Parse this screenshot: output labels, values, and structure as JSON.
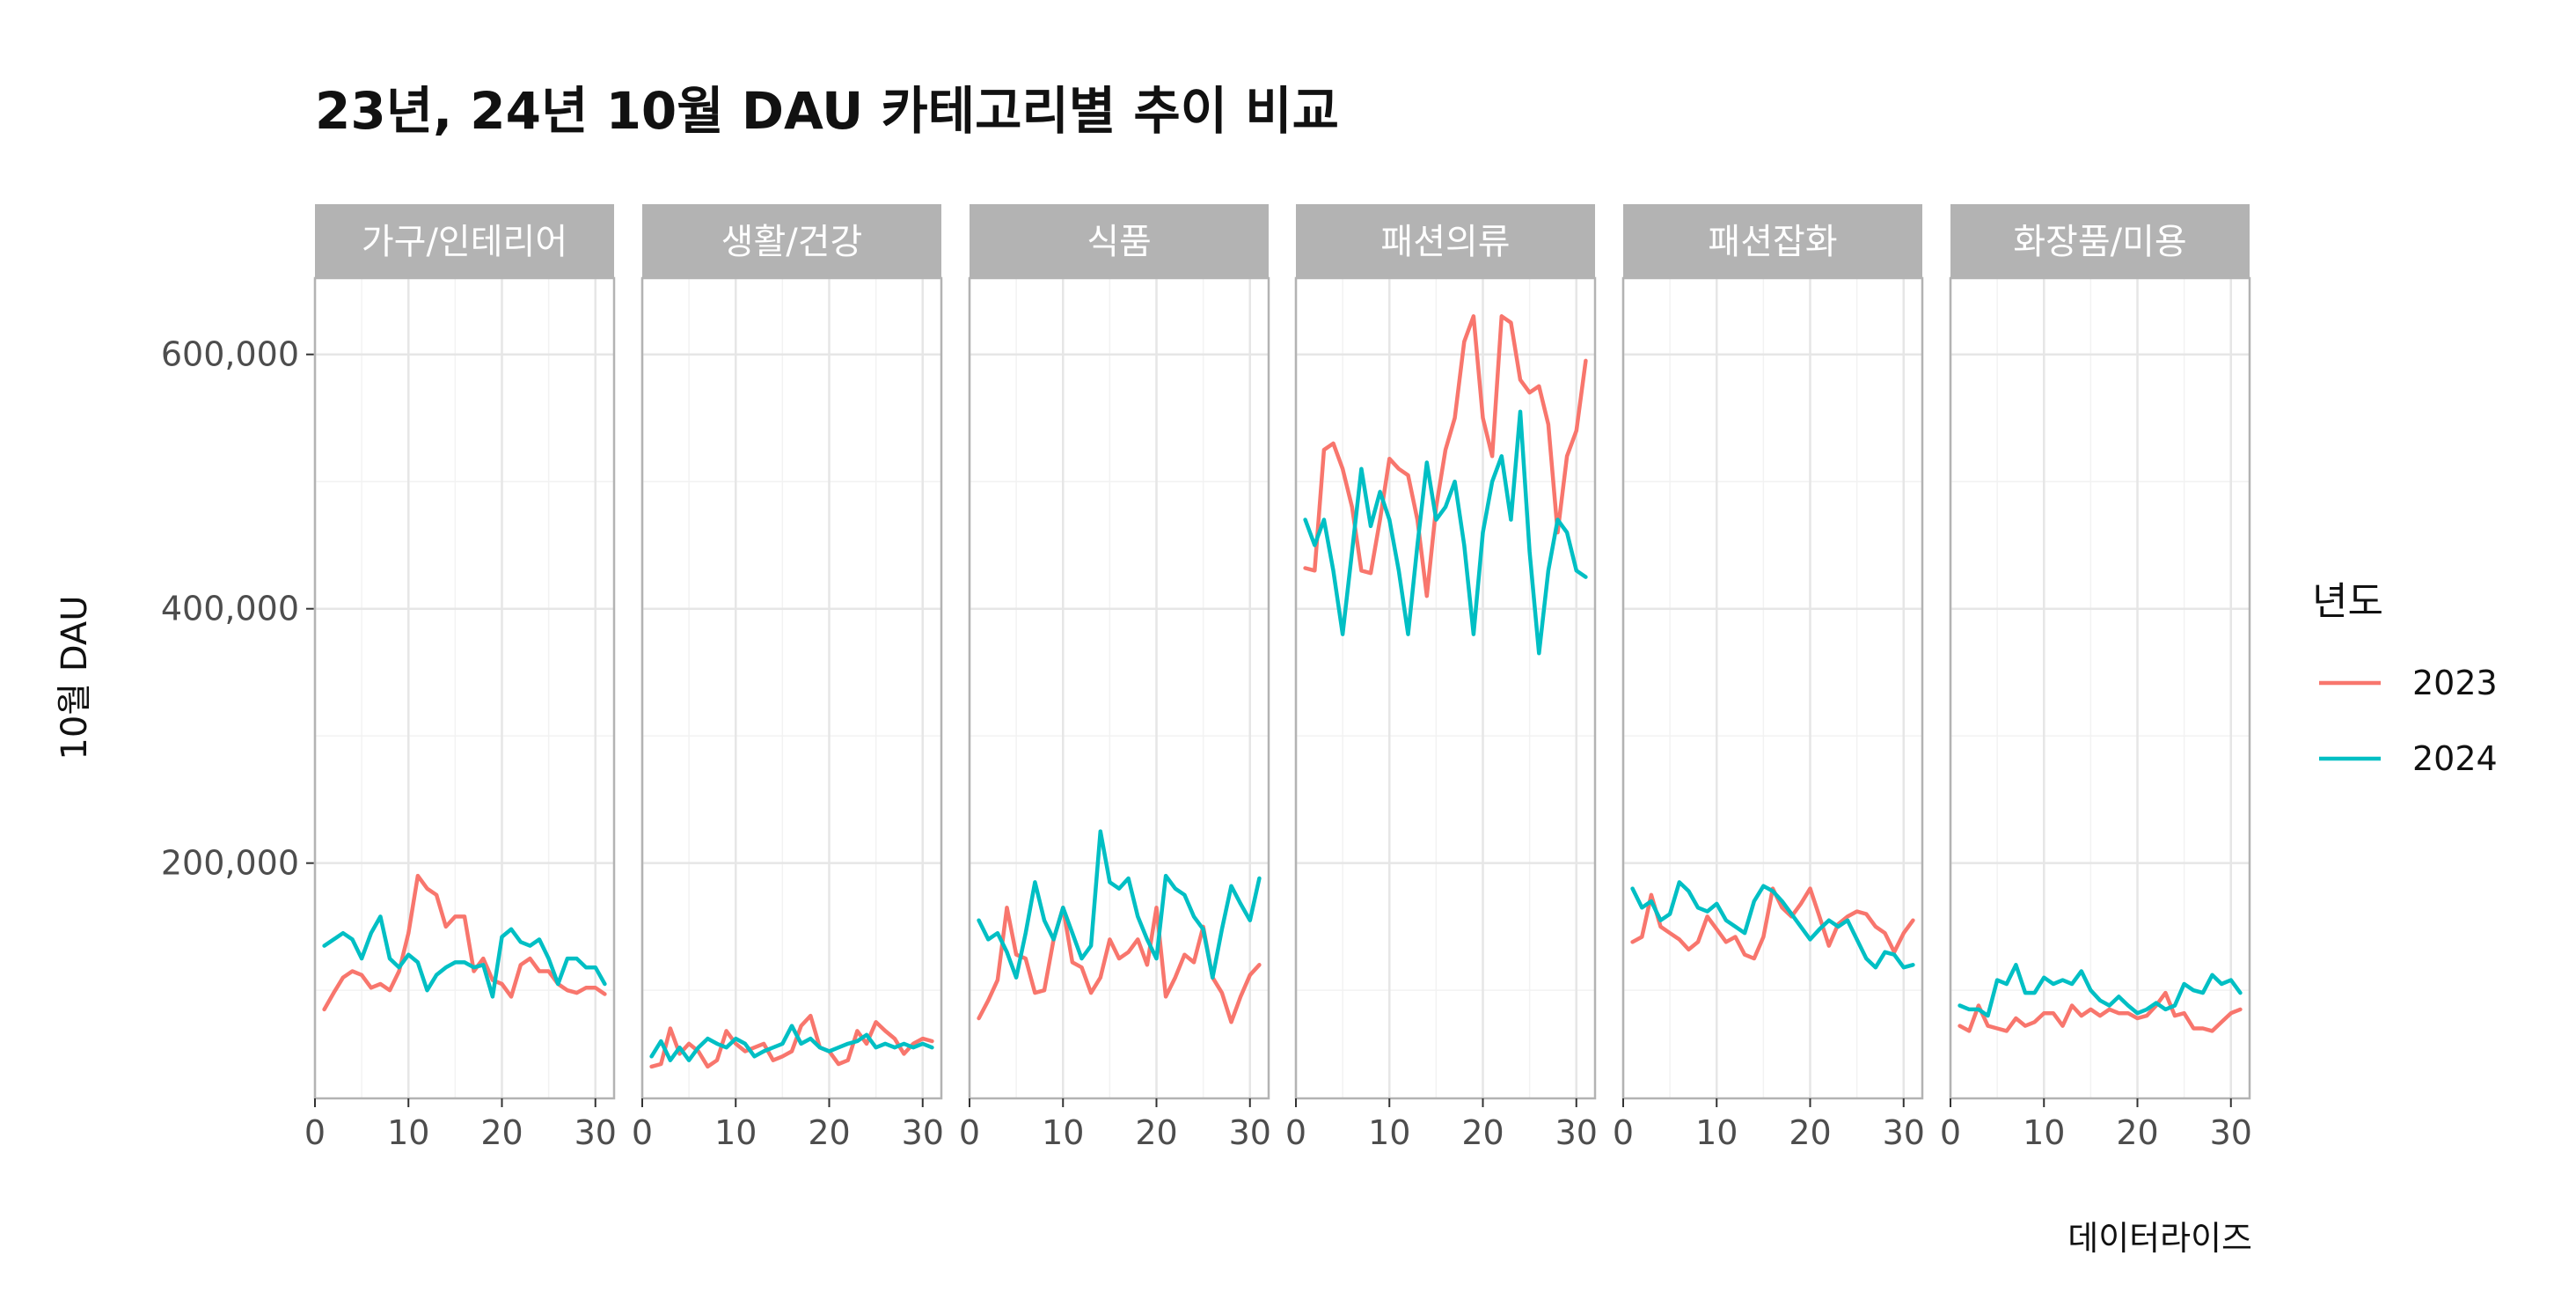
{
  "chart_data": {
    "type": "line",
    "title": "23년, 24년 10월 DAU 카테고리별 추이 비교",
    "xlabel": "",
    "ylabel": "10월 DAU",
    "caption": "데이터라이즈",
    "legend": {
      "title": "년도",
      "placement": "right"
    },
    "xlim": [
      0,
      32
    ],
    "ylim": [
      15000,
      660000
    ],
    "x_ticks": [
      0,
      10,
      20,
      30
    ],
    "x_tick_labels": [
      "0",
      "10",
      "20",
      "30"
    ],
    "y_ticks": [
      200000,
      400000,
      600000
    ],
    "y_tick_labels": [
      "200,000",
      "400,000",
      "600,000"
    ],
    "grid": true,
    "colors": {
      "2023": "#F8766D",
      "2024": "#00BFC4",
      "strip": "#b3b3b3",
      "border": "#b3b3b3",
      "grid_major": "#e6e6e6",
      "grid_minor": "#f2f2f2"
    },
    "x": [
      1,
      2,
      3,
      4,
      5,
      6,
      7,
      8,
      9,
      10,
      11,
      12,
      13,
      14,
      15,
      16,
      17,
      18,
      19,
      20,
      21,
      22,
      23,
      24,
      25,
      26,
      27,
      28,
      29,
      30,
      31
    ],
    "panels": [
      {
        "name": "가구/인테리어",
        "series": [
          {
            "name": "2023",
            "values": [
              85000,
              98000,
              110000,
              115000,
              112000,
              102000,
              105000,
              100000,
              115000,
              145000,
              190000,
              180000,
              175000,
              150000,
              158000,
              158000,
              115000,
              125000,
              108000,
              105000,
              95000,
              120000,
              125000,
              115000,
              115000,
              105000,
              100000,
              98000,
              102000,
              102000,
              97000
            ]
          },
          {
            "name": "2024",
            "values": [
              135000,
              140000,
              145000,
              140000,
              125000,
              145000,
              158000,
              125000,
              118000,
              128000,
              122000,
              100000,
              112000,
              118000,
              122000,
              122000,
              118000,
              120000,
              95000,
              142000,
              148000,
              138000,
              135000,
              140000,
              125000,
              105000,
              125000,
              125000,
              118000,
              118000,
              105000
            ]
          }
        ]
      },
      {
        "name": "생활/건강",
        "series": [
          {
            "name": "2023",
            "values": [
              40000,
              42000,
              70000,
              50000,
              58000,
              52000,
              40000,
              45000,
              68000,
              58000,
              52000,
              55000,
              58000,
              45000,
              48000,
              52000,
              72000,
              80000,
              55000,
              52000,
              42000,
              45000,
              68000,
              58000,
              75000,
              68000,
              62000,
              50000,
              58000,
              62000,
              60000
            ]
          },
          {
            "name": "2024",
            "values": [
              48000,
              60000,
              45000,
              55000,
              45000,
              55000,
              62000,
              58000,
              55000,
              62000,
              58000,
              48000,
              52000,
              55000,
              58000,
              72000,
              58000,
              62000,
              55000,
              52000,
              55000,
              58000,
              60000,
              65000,
              55000,
              58000,
              55000,
              58000,
              55000,
              58000,
              55000
            ]
          }
        ]
      },
      {
        "name": "식품",
        "series": [
          {
            "name": "2023",
            "values": [
              78000,
              92000,
              108000,
              165000,
              128000,
              125000,
              98000,
              100000,
              140000,
              165000,
              122000,
              118000,
              98000,
              110000,
              140000,
              125000,
              130000,
              140000,
              120000,
              165000,
              95000,
              110000,
              128000,
              122000,
              150000,
              110000,
              98000,
              75000,
              95000,
              112000,
              120000
            ]
          },
          {
            "name": "2024",
            "values": [
              155000,
              140000,
              145000,
              130000,
              110000,
              145000,
              185000,
              155000,
              140000,
              165000,
              145000,
              125000,
              135000,
              225000,
              185000,
              180000,
              188000,
              158000,
              140000,
              125000,
              190000,
              180000,
              175000,
              158000,
              148000,
              110000,
              148000,
              182000,
              168000,
              155000,
              188000
            ]
          }
        ]
      },
      {
        "name": "패션의류",
        "series": [
          {
            "name": "2023",
            "values": [
              432000,
              430000,
              525000,
              530000,
              510000,
              480000,
              430000,
              428000,
              470000,
              518000,
              510000,
              505000,
              470000,
              410000,
              480000,
              525000,
              550000,
              610000,
              630000,
              550000,
              520000,
              630000,
              625000,
              580000,
              570000,
              575000,
              545000,
              460000,
              520000,
              540000,
              595000
            ]
          },
          {
            "name": "2024",
            "values": [
              470000,
              450000,
              470000,
              430000,
              380000,
              445000,
              510000,
              465000,
              492000,
              470000,
              430000,
              380000,
              450000,
              515000,
              470000,
              480000,
              500000,
              450000,
              380000,
              460000,
              500000,
              520000,
              470000,
              555000,
              445000,
              365000,
              430000,
              470000,
              460000,
              430000,
              425000
            ]
          }
        ]
      },
      {
        "name": "패션잡화",
        "series": [
          {
            "name": "2023",
            "values": [
              138000,
              142000,
              175000,
              150000,
              145000,
              140000,
              132000,
              138000,
              158000,
              148000,
              138000,
              142000,
              128000,
              125000,
              142000,
              180000,
              165000,
              158000,
              168000,
              180000,
              158000,
              135000,
              152000,
              158000,
              162000,
              160000,
              150000,
              145000,
              130000,
              145000,
              155000
            ]
          },
          {
            "name": "2024",
            "values": [
              180000,
              165000,
              170000,
              155000,
              160000,
              185000,
              178000,
              165000,
              162000,
              168000,
              155000,
              150000,
              145000,
              170000,
              182000,
              178000,
              170000,
              160000,
              150000,
              140000,
              148000,
              155000,
              150000,
              155000,
              140000,
              125000,
              118000,
              130000,
              128000,
              118000,
              120000
            ]
          }
        ]
      },
      {
        "name": "화장품/미용",
        "series": [
          {
            "name": "2023",
            "values": [
              72000,
              68000,
              88000,
              72000,
              70000,
              68000,
              78000,
              72000,
              75000,
              82000,
              82000,
              72000,
              88000,
              80000,
              85000,
              80000,
              85000,
              82000,
              82000,
              78000,
              80000,
              88000,
              98000,
              80000,
              82000,
              70000,
              70000,
              68000,
              75000,
              82000,
              85000
            ]
          },
          {
            "name": "2024",
            "values": [
              88000,
              85000,
              85000,
              80000,
              108000,
              105000,
              120000,
              98000,
              98000,
              110000,
              105000,
              108000,
              105000,
              115000,
              100000,
              92000,
              88000,
              95000,
              88000,
              82000,
              85000,
              90000,
              85000,
              88000,
              105000,
              100000,
              98000,
              112000,
              105000,
              108000,
              98000
            ]
          }
        ]
      }
    ]
  }
}
